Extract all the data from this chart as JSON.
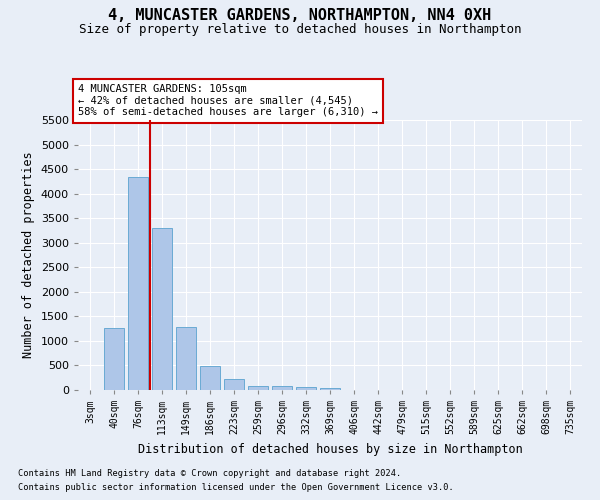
{
  "title": "4, MUNCASTER GARDENS, NORTHAMPTON, NN4 0XH",
  "subtitle": "Size of property relative to detached houses in Northampton",
  "xlabel": "Distribution of detached houses by size in Northampton",
  "ylabel": "Number of detached properties",
  "bar_labels": [
    "3sqm",
    "40sqm",
    "76sqm",
    "113sqm",
    "149sqm",
    "186sqm",
    "223sqm",
    "259sqm",
    "296sqm",
    "332sqm",
    "369sqm",
    "406sqm",
    "442sqm",
    "479sqm",
    "515sqm",
    "552sqm",
    "589sqm",
    "625sqm",
    "662sqm",
    "698sqm",
    "735sqm"
  ],
  "bar_values": [
    0,
    1260,
    4330,
    3300,
    1280,
    490,
    220,
    90,
    80,
    55,
    50,
    0,
    0,
    0,
    0,
    0,
    0,
    0,
    0,
    0,
    0
  ],
  "bar_color": "#aec6e8",
  "bar_edge_color": "#6aaad4",
  "annotation_text": "4 MUNCASTER GARDENS: 105sqm\n← 42% of detached houses are smaller (4,545)\n58% of semi-detached houses are larger (6,310) →",
  "annotation_box_color": "#ffffff",
  "annotation_box_edge_color": "#cc0000",
  "vline_color": "#cc0000",
  "vline_x": 2.5,
  "ylim": [
    0,
    5500
  ],
  "yticks": [
    0,
    500,
    1000,
    1500,
    2000,
    2500,
    3000,
    3500,
    4000,
    4500,
    5000,
    5500
  ],
  "background_color": "#e8eef7",
  "grid_color": "#ffffff",
  "title_fontsize": 11,
  "subtitle_fontsize": 9,
  "footnote1": "Contains HM Land Registry data © Crown copyright and database right 2024.",
  "footnote2": "Contains public sector information licensed under the Open Government Licence v3.0."
}
